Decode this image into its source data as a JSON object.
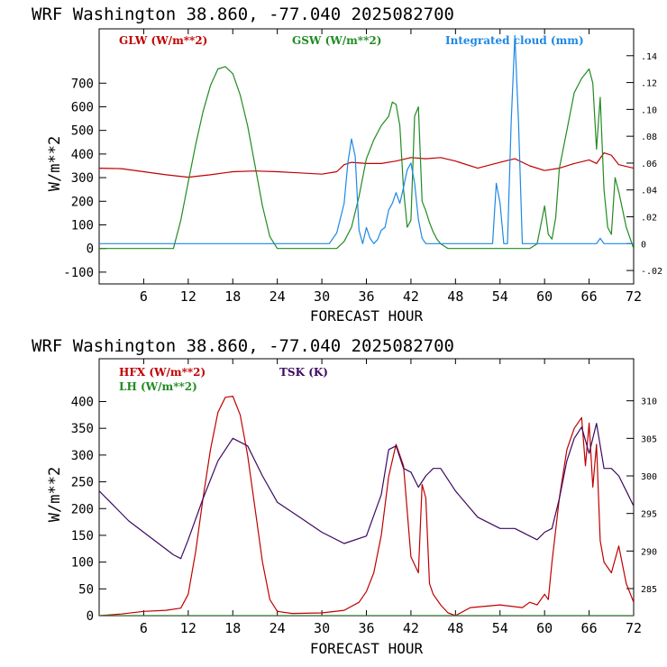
{
  "chart_data": [
    {
      "type": "line",
      "title": "WRF   Washington    38.860, -77.040  2025082700",
      "xlabel": "FORECAST HOUR",
      "ylabel": "W/m**2",
      "xlim": [
        0,
        72
      ],
      "ylim": [
        -150,
        930
      ],
      "y2lim": [
        -0.03,
        0.16
      ],
      "x_ticks": [
        6,
        12,
        18,
        24,
        30,
        36,
        42,
        48,
        54,
        60,
        66,
        72
      ],
      "y_ticks": [
        -100,
        0,
        100,
        200,
        300,
        400,
        500,
        600,
        700
      ],
      "y2_ticks": [
        -0.02,
        0,
        0.02,
        0.04,
        0.06,
        0.08,
        0.1,
        0.12,
        0.14
      ],
      "y2_tick_labels": [
        "-.02",
        "0",
        ".02",
        ".04",
        ".06",
        ".08",
        ".10",
        ".12",
        ".14"
      ],
      "series": [
        {
          "name": "GLW (W/m**2)",
          "color": "#c00000",
          "axis": "left",
          "x": [
            0,
            3,
            6,
            9,
            12,
            15,
            18,
            21,
            24,
            27,
            30,
            32,
            33,
            34,
            36,
            38,
            40,
            42,
            44,
            46,
            48,
            51,
            54,
            56,
            58,
            60,
            62,
            64,
            66,
            67,
            68,
            69,
            70,
            72
          ],
          "y": [
            340,
            338,
            325,
            312,
            302,
            312,
            325,
            328,
            325,
            320,
            315,
            325,
            355,
            365,
            360,
            360,
            370,
            385,
            380,
            385,
            370,
            340,
            365,
            380,
            350,
            330,
            340,
            360,
            375,
            360,
            405,
            395,
            355,
            340
          ]
        },
        {
          "name": "GSW (W/m**2)",
          "color": "#228b22",
          "axis": "left",
          "x": [
            0,
            10,
            11,
            12,
            13,
            14,
            15,
            16,
            17,
            18,
            19,
            20,
            21,
            22,
            23,
            24,
            32,
            33,
            34,
            35,
            36,
            37,
            38,
            39,
            39.5,
            40,
            40.5,
            41,
            41.5,
            42,
            42.5,
            43,
            43.5,
            44,
            44.5,
            45,
            45.5,
            46,
            46.5,
            47,
            48,
            58,
            59,
            60,
            60.5,
            61,
            61.5,
            62,
            63,
            64,
            65,
            66,
            66.5,
            67,
            67.5,
            68,
            68.5,
            69,
            69.5,
            70,
            71,
            72
          ],
          "y": [
            0,
            0,
            120,
            280,
            440,
            580,
            690,
            760,
            770,
            740,
            650,
            520,
            350,
            180,
            50,
            0,
            0,
            30,
            90,
            220,
            380,
            460,
            520,
            560,
            620,
            610,
            520,
            250,
            90,
            120,
            560,
            600,
            200,
            160,
            110,
            70,
            40,
            20,
            10,
            0,
            0,
            0,
            20,
            180,
            60,
            40,
            130,
            340,
            500,
            660,
            720,
            760,
            700,
            420,
            640,
            250,
            90,
            60,
            300,
            240,
            90,
            0
          ]
        },
        {
          "name": "Integrated cloud (mm)",
          "color": "#1e88e5",
          "axis": "right",
          "x": [
            0,
            31,
            32,
            33,
            33.5,
            34,
            34.5,
            35,
            35.5,
            36,
            36.5,
            37,
            37.5,
            38,
            38.5,
            39,
            39.5,
            40,
            40.5,
            41,
            41.5,
            42,
            42.5,
            43,
            43.5,
            44,
            53,
            53.5,
            54,
            54.5,
            55,
            55.5,
            56,
            56.5,
            57,
            57.5,
            58,
            67,
            67.5,
            68,
            72
          ],
          "y": [
            0,
            0,
            0.008,
            0.03,
            0.06,
            0.078,
            0.065,
            0.01,
            0,
            0.012,
            0.004,
            0,
            0.003,
            0.01,
            0.012,
            0.025,
            0.03,
            0.038,
            0.03,
            0.042,
            0.055,
            0.06,
            0.045,
            0.018,
            0.004,
            0,
            0,
            0.045,
            0.03,
            0,
            0,
            0.09,
            0.155,
            0.09,
            0,
            0,
            0,
            0,
            0.004,
            0,
            0
          ]
        }
      ]
    },
    {
      "type": "line",
      "title": "WRF   Washington    38.860, -77.040  2025082700",
      "xlabel": "FORECAST HOUR",
      "ylabel": "W/m**2",
      "xlim": [
        0,
        72
      ],
      "ylim": [
        0,
        480
      ],
      "y2lim": [
        281.4,
        315.6
      ],
      "x_ticks": [
        6,
        12,
        18,
        24,
        30,
        36,
        42,
        48,
        54,
        60,
        66,
        72
      ],
      "y_ticks": [
        0,
        50,
        100,
        150,
        200,
        250,
        300,
        350,
        400
      ],
      "y2_ticks": [
        285,
        290,
        295,
        300,
        305,
        310
      ],
      "series": [
        {
          "name": "HFX (W/m**2)",
          "color": "#c00000",
          "axis": "left",
          "x": [
            0,
            3,
            6,
            9,
            11,
            12,
            13,
            14,
            15,
            16,
            17,
            18,
            19,
            20,
            21,
            22,
            23,
            24,
            26,
            30,
            33,
            35,
            36,
            37,
            38,
            39,
            40,
            41,
            42,
            43,
            43.5,
            44,
            44.5,
            45,
            46,
            47,
            48,
            50,
            54,
            57,
            58,
            59,
            60,
            60.5,
            61,
            62,
            63,
            64,
            65,
            65.5,
            66,
            66.5,
            67,
            67.5,
            68,
            69,
            70,
            71,
            72
          ],
          "y": [
            0,
            3,
            8,
            10,
            14,
            40,
            120,
            220,
            310,
            380,
            408,
            410,
            375,
            300,
            200,
            100,
            30,
            8,
            4,
            5,
            10,
            25,
            45,
            80,
            150,
            260,
            320,
            280,
            110,
            80,
            245,
            220,
            60,
            40,
            20,
            5,
            0,
            15,
            20,
            15,
            25,
            20,
            40,
            30,
            100,
            220,
            310,
            350,
            370,
            280,
            360,
            240,
            320,
            140,
            100,
            80,
            130,
            60,
            25
          ]
        },
        {
          "name": "LH  (W/m**2)",
          "color": "#228b22",
          "axis": "left",
          "x": [
            0,
            72
          ],
          "y": [
            0,
            0
          ]
        },
        {
          "name": "TSK (K)",
          "color": "#3b0a60",
          "axis": "right",
          "x": [
            0,
            2,
            4,
            6,
            8,
            10,
            11,
            12,
            14,
            16,
            18,
            20,
            22,
            24,
            27,
            30,
            33,
            36,
            38,
            39,
            40,
            41,
            42,
            43,
            44,
            45,
            46,
            48,
            51,
            54,
            56,
            58,
            59,
            60,
            61,
            62,
            63,
            64,
            65,
            66,
            67,
            68,
            69,
            70,
            71,
            72
          ],
          "y": [
            298,
            296,
            294,
            292.5,
            291,
            289.5,
            289,
            291.5,
            297,
            302,
            305,
            304,
            300,
            296.5,
            294.5,
            292.5,
            291,
            292,
            297.5,
            303.5,
            304,
            301,
            300.5,
            298.5,
            300,
            301,
            301,
            298,
            294.5,
            293,
            293,
            292,
            291.5,
            292.5,
            293,
            297,
            302,
            305,
            306.5,
            303,
            307,
            301,
            301,
            300,
            298,
            296
          ]
        }
      ]
    }
  ]
}
